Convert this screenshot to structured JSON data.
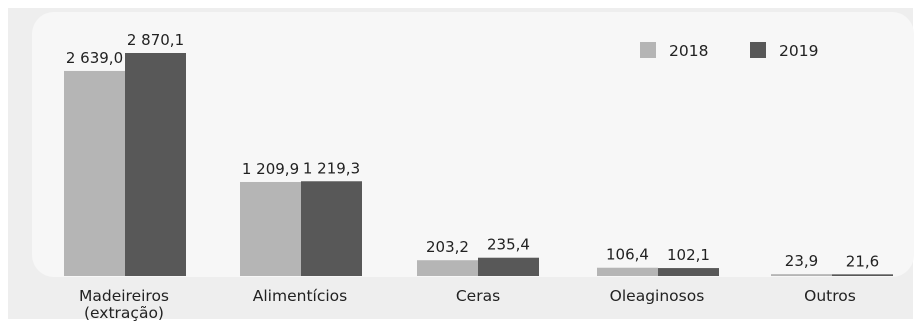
{
  "chart_data": {
    "type": "bar",
    "categories": [
      [
        "Madeireiros",
        "(extração)"
      ],
      [
        "Alimentícios"
      ],
      [
        "Ceras"
      ],
      [
        "Oleaginosos"
      ],
      [
        "Outros"
      ]
    ],
    "series": [
      {
        "name": "2018",
        "color": "#b5b5b5",
        "values": [
          2639.0,
          1209.9,
          203.2,
          106.4,
          23.9
        ],
        "labels": [
          "2 639,0",
          "1 209,9",
          "203,2",
          "106,4",
          "23,9"
        ]
      },
      {
        "name": "2019",
        "color": "#585858",
        "values": [
          2870.1,
          1219.3,
          235.4,
          102.1,
          21.6
        ],
        "labels": [
          "2 870,1",
          "1 219,3",
          "235,4",
          "102,1",
          "21,6"
        ]
      }
    ],
    "ylim": [
      0,
      2870.1
    ],
    "grid": false,
    "legend_position": "top-right"
  }
}
